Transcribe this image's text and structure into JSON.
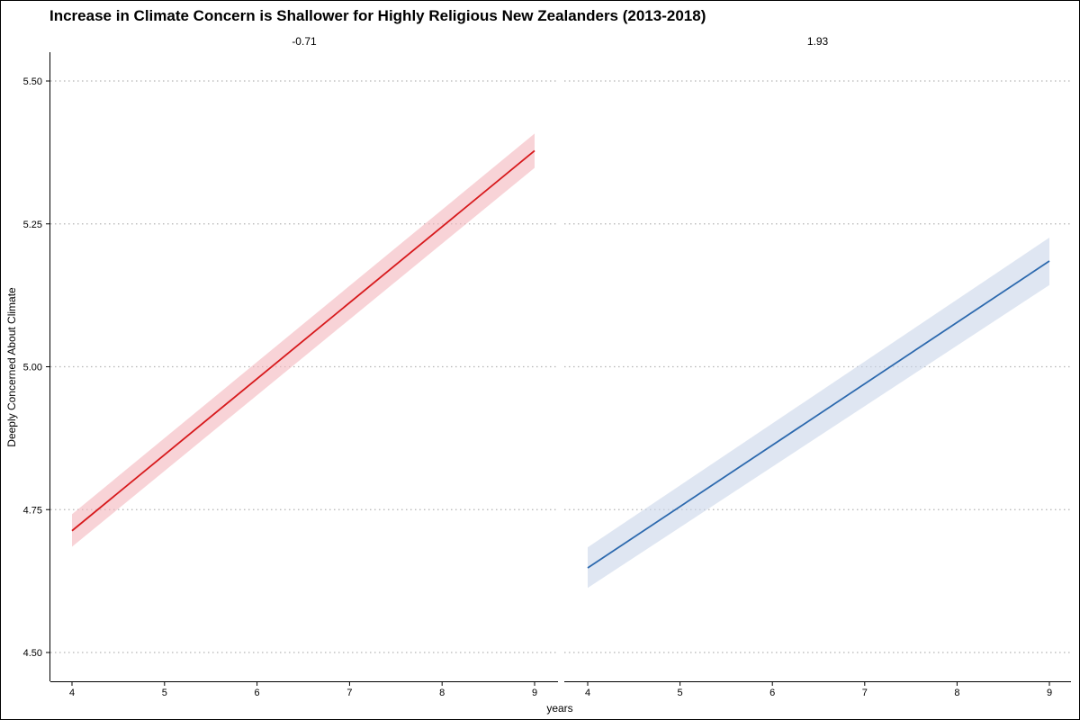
{
  "chart_data": {
    "type": "line",
    "title": "Increase in Climate Concern is Shallower for Highly Religious New Zealanders (2013-2018)",
    "xlabel": "years",
    "ylabel": "Deeply Concerned About Climate",
    "xlim": [
      4,
      9
    ],
    "ylim": [
      4.5,
      5.5
    ],
    "x_ticks": [
      "4",
      "5",
      "6",
      "7",
      "8",
      "9"
    ],
    "y_ticks": [
      "4.50",
      "4.75",
      "5.00",
      "5.25",
      "5.50"
    ],
    "grid": "horizontal dotted",
    "panels": [
      {
        "label": "-0.71",
        "color": "#d7191c",
        "ribbon_color": "#f4b6bd",
        "x": [
          4,
          9
        ],
        "y": [
          4.713,
          5.378
        ],
        "y_lower": [
          4.685,
          5.348
        ],
        "y_upper": [
          4.742,
          5.408
        ]
      },
      {
        "label": "1.93",
        "color": "#2c69ae",
        "ribbon_color": "#c9d6e9",
        "x": [
          4,
          9
        ],
        "y": [
          4.648,
          5.185
        ],
        "y_lower": [
          4.613,
          5.143
        ],
        "y_upper": [
          4.684,
          5.226
        ]
      }
    ]
  }
}
